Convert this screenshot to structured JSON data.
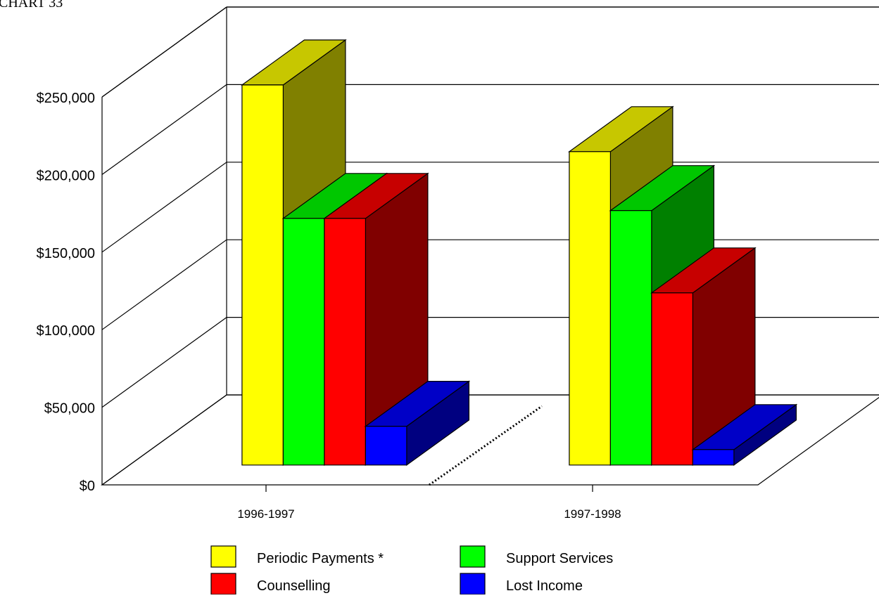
{
  "chart_data": {
    "type": "bar",
    "title": "CHART 33",
    "xlabel": "",
    "ylabel": "",
    "categories": [
      "1996-1997",
      "1997-1998"
    ],
    "y_tick_labels": [
      "$0",
      "$50,000",
      "$100,000",
      "$150,000",
      "$200,000",
      "$250,000"
    ],
    "ylim": [
      0,
      250000
    ],
    "grid": true,
    "legend_position": "bottom",
    "style": "3d",
    "series": [
      {
        "name": "Periodic Payments *",
        "color": "#ffff00",
        "values": [
          245000,
          202000
        ]
      },
      {
        "name": "Support Services",
        "color": "#00ff00",
        "values": [
          159000,
          164000
        ]
      },
      {
        "name": "Counselling",
        "color": "#ff0000",
        "values": [
          159000,
          111000
        ]
      },
      {
        "name": "Lost Income",
        "color": "#0000ff",
        "values": [
          25000,
          10000
        ]
      }
    ]
  }
}
